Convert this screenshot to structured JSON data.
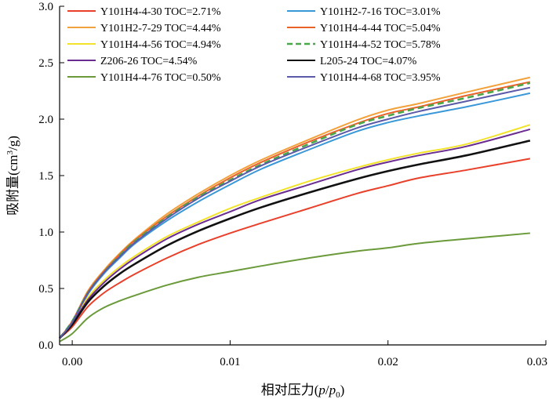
{
  "chart_data": {
    "type": "line",
    "xlabel": "相对压力(p/p0)",
    "ylabel": "吸附量(cm3/g)",
    "xlim": [
      -0.0008,
      0.03
    ],
    "ylim": [
      0,
      3.0
    ],
    "x_ticks": [
      0.0,
      0.01,
      0.02,
      0.03
    ],
    "x_tick_labels": [
      "0.00",
      "0.01",
      "0.02",
      "0.03"
    ],
    "y_ticks": [
      0.0,
      0.5,
      1.0,
      1.5,
      2.0,
      2.5,
      3.0
    ],
    "y_tick_labels": [
      "0.0",
      "0.5",
      "1.0",
      "1.5",
      "2.0",
      "2.5",
      "3.0"
    ],
    "grid": false,
    "legend_position": "top",
    "x": [
      -0.0008,
      0.0,
      0.001,
      0.002,
      0.003,
      0.004,
      0.006,
      0.008,
      0.01,
      0.012,
      0.015,
      0.018,
      0.02,
      0.022,
      0.025,
      0.029
    ],
    "series": [
      {
        "name": "Y101H4-4-30  TOC=2.71%",
        "color": "#e8402a",
        "dash": false,
        "values": [
          0.06,
          0.16,
          0.34,
          0.46,
          0.55,
          0.63,
          0.77,
          0.89,
          0.99,
          1.08,
          1.21,
          1.34,
          1.41,
          1.48,
          1.55,
          1.65
        ]
      },
      {
        "name": "Y101H2-7-16  TOC=3.01%",
        "color": "#3a98d8",
        "dash": false,
        "values": [
          0.06,
          0.2,
          0.45,
          0.63,
          0.77,
          0.9,
          1.1,
          1.27,
          1.42,
          1.56,
          1.73,
          1.89,
          1.97,
          2.03,
          2.11,
          2.23
        ]
      },
      {
        "name": "Y101H2-7-29  TOC=4.44%",
        "color": "#f2a23c",
        "dash": false,
        "values": [
          0.06,
          0.21,
          0.48,
          0.66,
          0.81,
          0.94,
          1.16,
          1.34,
          1.5,
          1.64,
          1.82,
          1.99,
          2.08,
          2.14,
          2.24,
          2.37
        ]
      },
      {
        "name": "Y101H4-4-44  TOC=5.04%",
        "color": "#e8622a",
        "dash": false,
        "values": [
          0.06,
          0.21,
          0.47,
          0.65,
          0.8,
          0.93,
          1.14,
          1.32,
          1.48,
          1.62,
          1.8,
          1.96,
          2.05,
          2.11,
          2.21,
          2.33
        ]
      },
      {
        "name": "Y101H4-4-56  TOC=4.94%",
        "color": "#f2e22a",
        "dash": false,
        "values": [
          0.06,
          0.2,
          0.42,
          0.57,
          0.69,
          0.79,
          0.96,
          1.09,
          1.21,
          1.31,
          1.45,
          1.57,
          1.64,
          1.7,
          1.78,
          1.95
        ]
      },
      {
        "name": "Y101H4-4-52  TOC=5.78%",
        "color": "#4aa84a",
        "dash": true,
        "values": [
          0.06,
          0.21,
          0.46,
          0.64,
          0.79,
          0.92,
          1.13,
          1.31,
          1.46,
          1.6,
          1.78,
          1.95,
          2.03,
          2.1,
          2.19,
          2.32
        ]
      },
      {
        "name": "Z206-26  TOC=4.54%",
        "color": "#6a2c90",
        "dash": false,
        "values": [
          0.06,
          0.19,
          0.4,
          0.55,
          0.67,
          0.77,
          0.94,
          1.07,
          1.18,
          1.29,
          1.42,
          1.55,
          1.62,
          1.68,
          1.76,
          1.91
        ]
      },
      {
        "name": "L205-24  TOC=4.07%",
        "color": "#111111",
        "dash": false,
        "values": [
          0.06,
          0.18,
          0.38,
          0.52,
          0.63,
          0.72,
          0.88,
          1.01,
          1.12,
          1.22,
          1.35,
          1.47,
          1.54,
          1.6,
          1.68,
          1.81
        ]
      },
      {
        "name": "Y101H4-4-76  TOC=0.50%",
        "color": "#6a9a3a",
        "dash": false,
        "values": [
          0.03,
          0.1,
          0.24,
          0.33,
          0.39,
          0.44,
          0.53,
          0.6,
          0.65,
          0.7,
          0.77,
          0.83,
          0.86,
          0.9,
          0.94,
          0.99
        ]
      },
      {
        "name": "Y101H4-4-68  TOC=3.95%",
        "color": "#5a5aa8",
        "dash": false,
        "values": [
          0.06,
          0.2,
          0.46,
          0.64,
          0.78,
          0.91,
          1.12,
          1.3,
          1.45,
          1.59,
          1.76,
          1.92,
          2.0,
          2.07,
          2.16,
          2.28
        ]
      }
    ]
  }
}
